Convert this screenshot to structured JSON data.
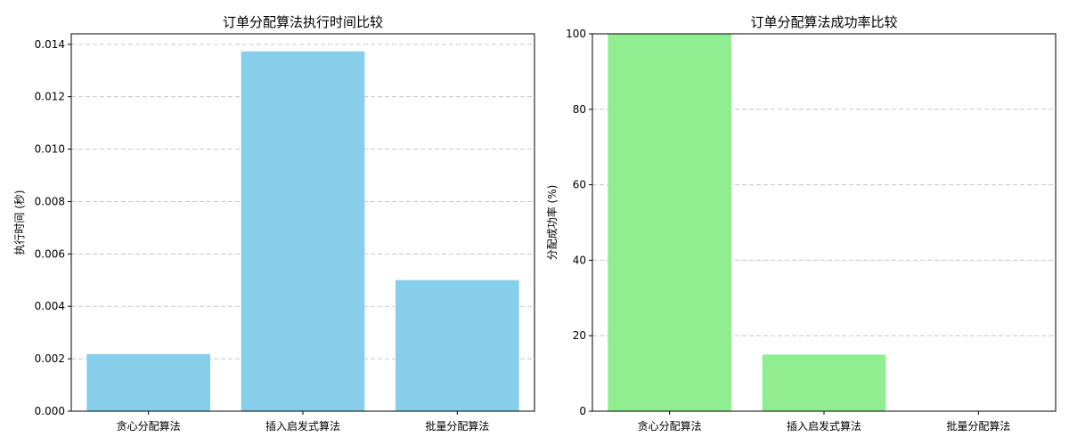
{
  "chart_data": [
    {
      "type": "bar",
      "title": "订单分配算法执行时间比较",
      "xlabel": "",
      "ylabel": "执行时间 (秒)",
      "categories": [
        "贪心分配算法",
        "插入启发式算法",
        "批量分配算法"
      ],
      "values": [
        0.00218,
        0.01373,
        0.005
      ],
      "ylim": [
        0,
        0.0144
      ],
      "yticks": [
        "0.000",
        "0.002",
        "0.004",
        "0.006",
        "0.008",
        "0.010",
        "0.012",
        "0.014"
      ],
      "bar_color": "#87ceeb",
      "grid": "y-dashed"
    },
    {
      "type": "bar",
      "title": "订单分配算法成功率比较",
      "xlabel": "",
      "ylabel": "分配成功率 (%)",
      "categories": [
        "贪心分配算法",
        "插入启发式算法",
        "批量分配算法"
      ],
      "values": [
        100,
        15,
        0
      ],
      "ylim": [
        0,
        100
      ],
      "yticks": [
        "0",
        "20",
        "40",
        "60",
        "80",
        "100"
      ],
      "bar_color": "#90ee90",
      "grid": "y-dashed"
    }
  ]
}
